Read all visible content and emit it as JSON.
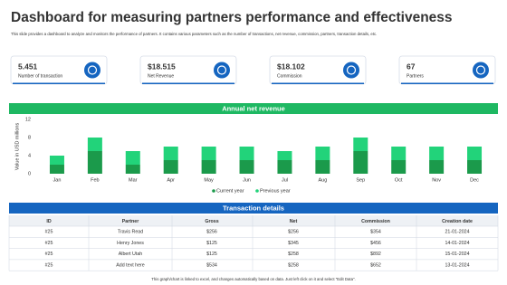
{
  "header": {
    "title": "Dashboard for measuring partners performance and effectiveness",
    "subtitle": "This slide provides a dashboard to analyze and monitors the performance of partners. It contains various parameters such as the number of transactions, net revenue, commission, partners, transaction details, etc."
  },
  "kpis": [
    {
      "value": "5.451",
      "label": "Number of transaction"
    },
    {
      "value": "$18.515",
      "label": "Net Revenue"
    },
    {
      "value": "$18.102",
      "label": "Commission"
    },
    {
      "value": "67",
      "label": "Partners"
    }
  ],
  "chart_data": {
    "type": "stacked_bar",
    "title": "Annual net revenue",
    "y_label": "Value in USD millions",
    "categories": [
      "Jan",
      "Feb",
      "Mar",
      "Apr",
      "May",
      "Jun",
      "Jul",
      "Aug",
      "Sep",
      "Oct",
      "Nov",
      "Dec"
    ],
    "series": [
      {
        "name": "Current year",
        "color": "#1b9a4b",
        "values": [
          2,
          5,
          2,
          3,
          3,
          3,
          3,
          3,
          5,
          3,
          3,
          3
        ]
      },
      {
        "name": "Previous year",
        "color": "#22d37a",
        "values": [
          2,
          3,
          3,
          3,
          3,
          3,
          2,
          3,
          3,
          3,
          3,
          3
        ]
      }
    ],
    "ylim": [
      0,
      12
    ],
    "yticks": [
      0,
      4,
      8,
      12
    ],
    "grid": false,
    "legend": "bottom"
  },
  "table": {
    "title": "Transaction details",
    "columns": [
      "ID",
      "Partner",
      "Gross",
      "Net",
      "Commission",
      "Creation date"
    ],
    "rows": [
      [
        "#25",
        "Travis  Read",
        "$256",
        "$256",
        "$354",
        "21-01-2024"
      ],
      [
        "#25",
        "Henry Jones",
        "$125",
        "$345",
        "$456",
        "14-01-2024"
      ],
      [
        "#25",
        "Albert Utah",
        "$125",
        "$258",
        "$892",
        "15-01-2024"
      ],
      [
        "#25",
        "Add text here",
        "$534",
        "$258",
        "$652",
        "13-01-2024"
      ]
    ]
  },
  "footer": "This graph/chart is linked to excel, and changes automatically based on data. Just left click on it and select \"Edit Data\"."
}
